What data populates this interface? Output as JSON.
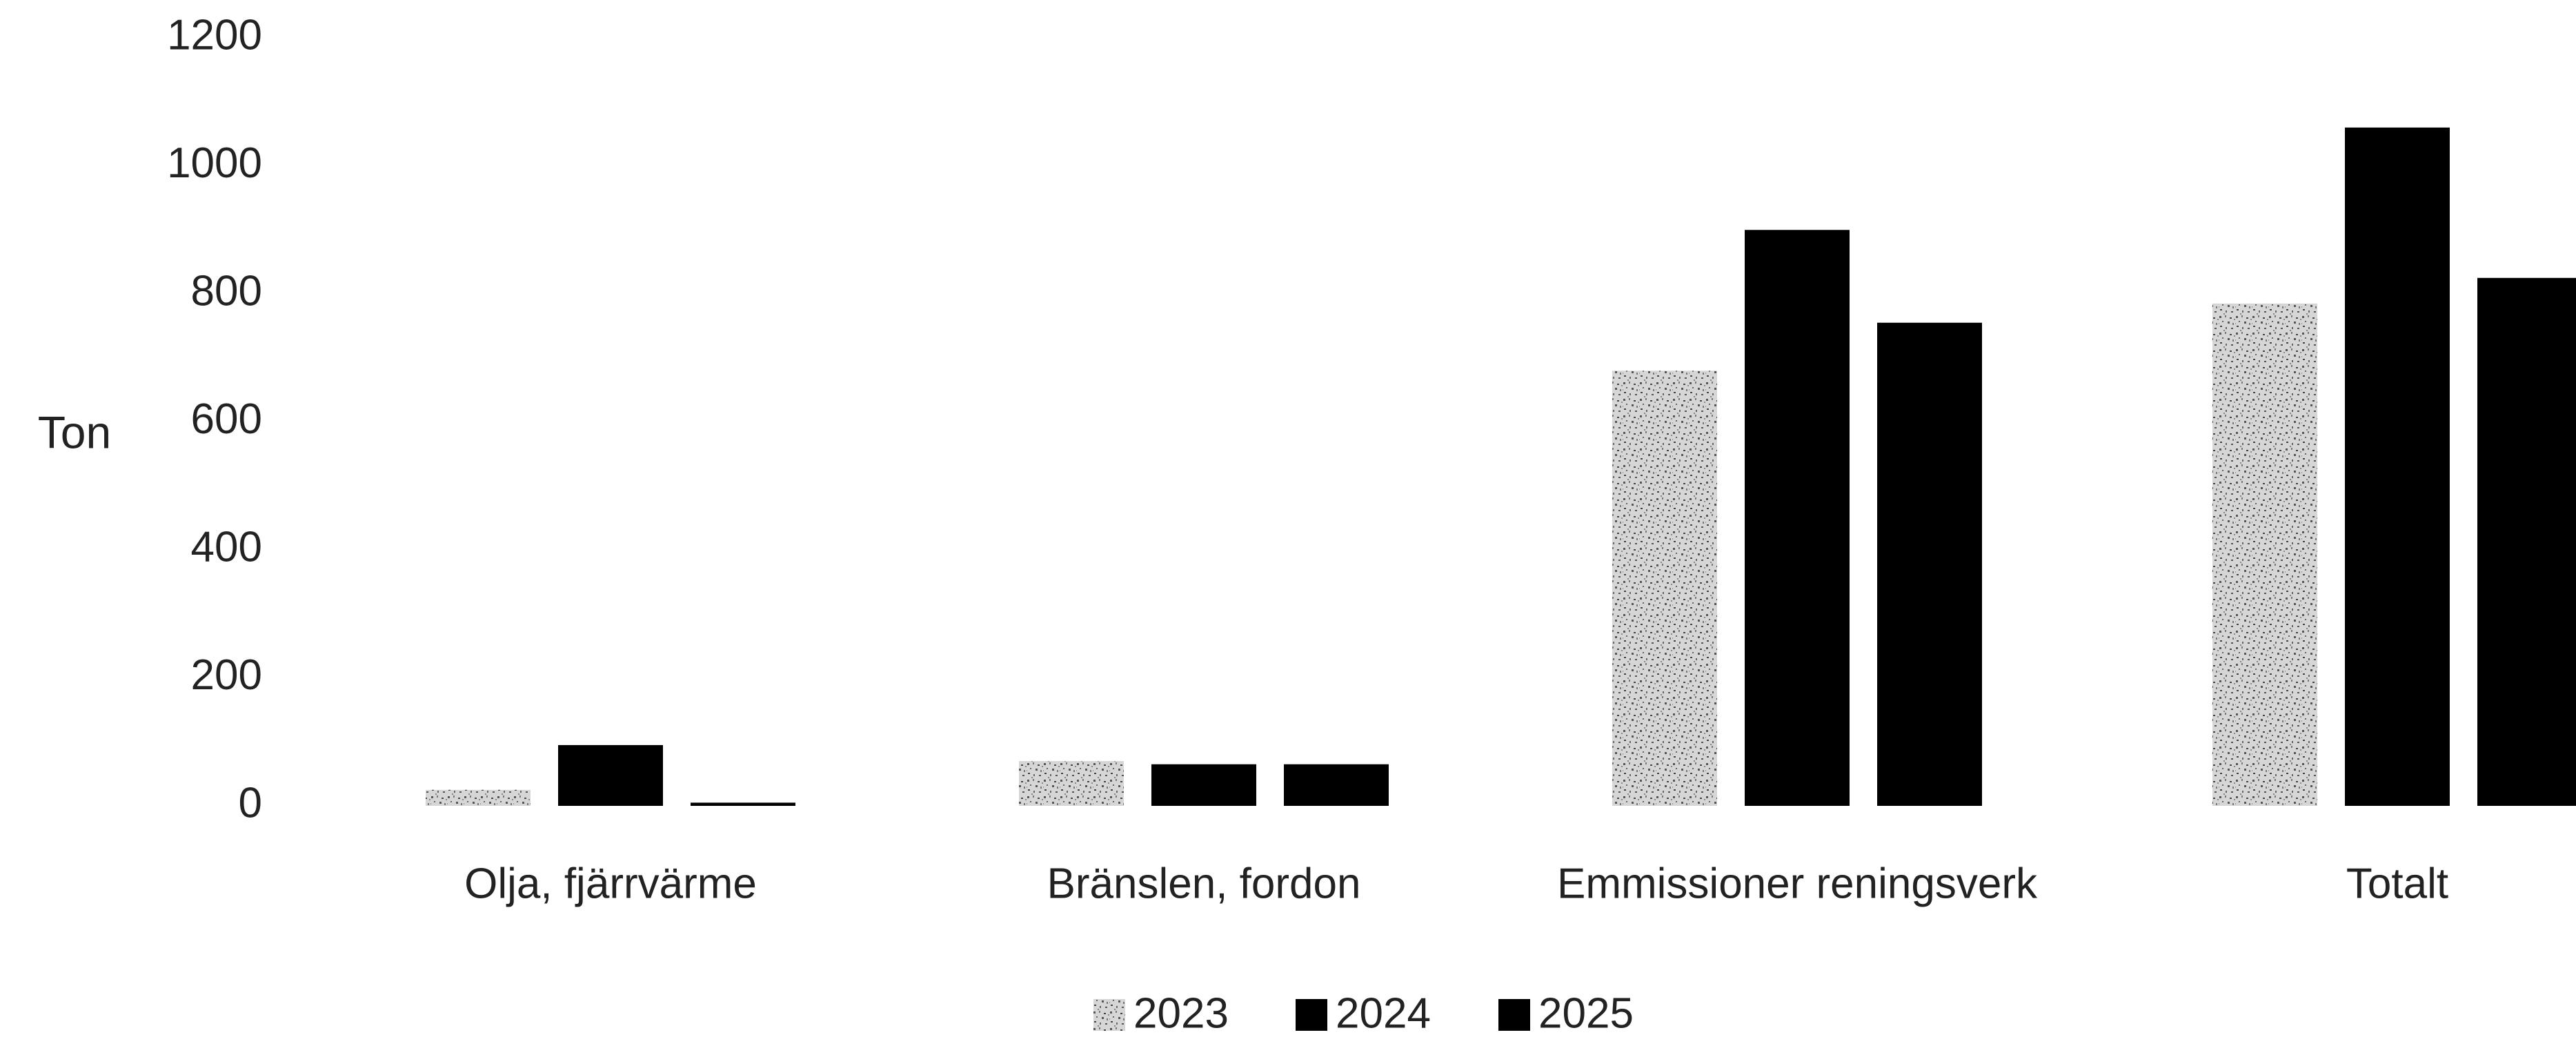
{
  "chart_data": {
    "type": "bar",
    "title": "",
    "xlabel": "",
    "ylabel": "Ton",
    "ylim": [
      0,
      1200
    ],
    "yticks": [
      0,
      200,
      400,
      600,
      800,
      1000,
      1200
    ],
    "grid": false,
    "legend_position": "bottom-center",
    "categories": [
      "Olja, fjärrvärme",
      "Bränslen, fordon",
      "Emmissioner reningsverk",
      "Totalt"
    ],
    "series": [
      {
        "name": "2023",
        "values": [
          25,
          70,
          680,
          785
        ],
        "color": "#a8a8a8",
        "pattern": "speckled"
      },
      {
        "name": "2024",
        "values": [
          95,
          65,
          900,
          1060
        ],
        "color": "#000000",
        "pattern": "solid"
      },
      {
        "name": "2025",
        "values": [
          5,
          65,
          755,
          825
        ],
        "color": "#000000",
        "pattern": "solid"
      }
    ]
  }
}
